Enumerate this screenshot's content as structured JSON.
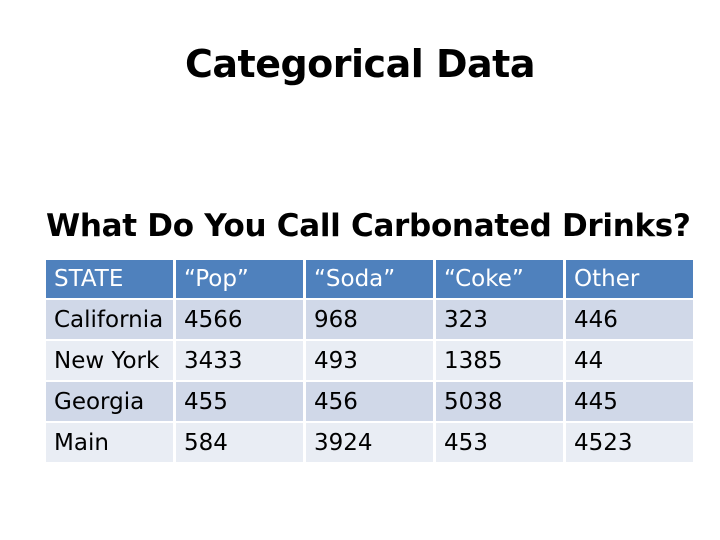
{
  "slide": {
    "title": "Categorical Data",
    "subtitle": "What Do You Call Carbonated Drinks?"
  },
  "table": {
    "headers": [
      "STATE",
      "“Pop”",
      "“Soda”",
      "“Coke”",
      "Other"
    ],
    "rows": [
      [
        "California",
        "4566",
        "968",
        "323",
        "446"
      ],
      [
        "New York",
        "3433",
        "493",
        "1385",
        "44"
      ],
      [
        "Georgia",
        "455",
        "456",
        "5038",
        "445"
      ],
      [
        "Main",
        "584",
        "3924",
        "453",
        "4523"
      ]
    ]
  },
  "colors": {
    "header_background": "#4f81bd",
    "header_text": "#ffffff",
    "row_band_dark": "#d0d8e8",
    "row_band_light": "#e9edf4"
  }
}
